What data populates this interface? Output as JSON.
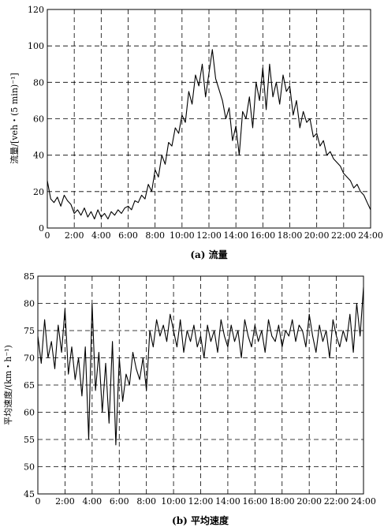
{
  "chart_data": [
    {
      "type": "line",
      "caption": "(a) 流量",
      "ylabel": "流量/[veh・(5 min)⁻¹]",
      "xlim": [
        0,
        24
      ],
      "ylim": [
        0,
        120
      ],
      "x_ticks": [
        "0",
        "2:00",
        "4:00",
        "6:00",
        "8:00",
        "10:00",
        "12:00",
        "14:00",
        "16:00",
        "18:00",
        "20:00",
        "22:00",
        "24:00"
      ],
      "y_ticks": [
        "0",
        "20",
        "40",
        "60",
        "80",
        "100",
        "120"
      ],
      "grid": true,
      "series": [
        {
          "x": [
            0,
            0.25,
            0.5,
            0.75,
            1,
            1.25,
            1.5,
            1.75,
            2,
            2.25,
            2.5,
            2.75,
            3,
            3.25,
            3.5,
            3.75,
            4,
            4.25,
            4.5,
            4.75,
            5,
            5.25,
            5.5,
            5.75,
            6,
            6.25,
            6.5,
            6.75,
            7,
            7.25,
            7.5,
            7.75,
            8,
            8.25,
            8.5,
            8.75,
            9,
            9.25,
            9.5,
            9.75,
            10,
            10.25,
            10.5,
            10.75,
            11,
            11.25,
            11.5,
            11.75,
            12,
            12.25,
            12.5,
            12.75,
            13,
            13.25,
            13.5,
            13.75,
            14,
            14.25,
            14.5,
            14.75,
            15,
            15.25,
            15.5,
            15.75,
            16,
            16.25,
            16.5,
            16.75,
            17,
            17.25,
            17.5,
            17.75,
            18,
            18.25,
            18.5,
            18.75,
            19,
            19.25,
            19.5,
            19.75,
            20,
            20.25,
            20.5,
            20.75,
            21,
            21.25,
            21.5,
            21.75,
            22,
            22.25,
            22.5,
            22.75,
            23,
            23.25,
            23.5,
            23.75,
            24
          ],
          "y": [
            26,
            16,
            14,
            17,
            12,
            18,
            15,
            13,
            8,
            10,
            7,
            11,
            6,
            9,
            5,
            10,
            6,
            8,
            5,
            9,
            7,
            10,
            8,
            11,
            12,
            10,
            15,
            14,
            18,
            16,
            24,
            20,
            32,
            28,
            40,
            35,
            47,
            45,
            55,
            52,
            62,
            58,
            75,
            68,
            84,
            78,
            90,
            72,
            85,
            98,
            82,
            76,
            70,
            60,
            66,
            48,
            56,
            40,
            64,
            60,
            72,
            55,
            80,
            70,
            88,
            65,
            90,
            72,
            80,
            68,
            84,
            75,
            78,
            62,
            70,
            55,
            64,
            58,
            60,
            50,
            52,
            45,
            48,
            40,
            42,
            38,
            36,
            34,
            30,
            28,
            26,
            22,
            24,
            20,
            18,
            14,
            10
          ]
        }
      ]
    },
    {
      "type": "line",
      "caption": "(b) 平均速度",
      "ylabel": "平均速度/(km・h⁻¹)",
      "xlim": [
        0,
        24
      ],
      "ylim": [
        45,
        85
      ],
      "x_ticks": [
        "0",
        "2:00",
        "4:00",
        "6:00",
        "8:00",
        "10:00",
        "12:00",
        "14:00",
        "16:00",
        "18:00",
        "20:00",
        "22:00",
        "24:00"
      ],
      "y_ticks": [
        "45",
        "50",
        "55",
        "60",
        "65",
        "70",
        "75",
        "80",
        "85"
      ],
      "grid": true,
      "series": [
        {
          "x": [
            0,
            0.25,
            0.5,
            0.75,
            1,
            1.25,
            1.5,
            1.75,
            2,
            2.25,
            2.5,
            2.75,
            3,
            3.25,
            3.5,
            3.75,
            4,
            4.25,
            4.5,
            4.75,
            5,
            5.25,
            5.5,
            5.75,
            6,
            6.25,
            6.5,
            6.75,
            7,
            7.25,
            7.5,
            7.75,
            8,
            8.25,
            8.5,
            8.75,
            9,
            9.25,
            9.5,
            9.75,
            10,
            10.25,
            10.5,
            10.75,
            11,
            11.25,
            11.5,
            11.75,
            12,
            12.25,
            12.5,
            12.75,
            13,
            13.25,
            13.5,
            13.75,
            14,
            14.25,
            14.5,
            14.75,
            15,
            15.25,
            15.5,
            15.75,
            16,
            16.25,
            16.5,
            16.75,
            17,
            17.25,
            17.5,
            17.75,
            18,
            18.25,
            18.5,
            18.75,
            19,
            19.25,
            19.5,
            19.75,
            20,
            20.25,
            20.5,
            20.75,
            21,
            21.25,
            21.5,
            21.75,
            22,
            22.25,
            22.5,
            22.75,
            23,
            23.25,
            23.5,
            23.75,
            24
          ],
          "y": [
            74,
            69,
            77,
            70,
            73,
            68,
            76,
            71,
            79,
            67,
            72,
            66,
            70,
            63,
            72,
            55,
            80,
            64,
            71,
            60,
            69,
            58,
            73,
            54,
            70,
            62,
            67,
            65,
            71,
            68,
            66,
            70,
            64,
            75,
            72,
            77,
            74,
            76,
            73,
            78,
            75,
            72,
            77,
            71,
            75,
            73,
            76,
            72,
            74,
            70,
            76,
            73,
            75,
            71,
            77,
            74,
            72,
            76,
            73,
            75,
            70,
            77,
            74,
            72,
            76,
            73,
            75,
            71,
            77,
            74,
            73,
            76,
            72,
            75,
            74,
            77,
            73,
            76,
            75,
            72,
            78,
            74,
            71,
            76,
            73,
            75,
            70,
            77,
            74,
            72,
            75,
            73,
            78,
            71,
            80,
            74,
            83
          ]
        }
      ]
    }
  ]
}
